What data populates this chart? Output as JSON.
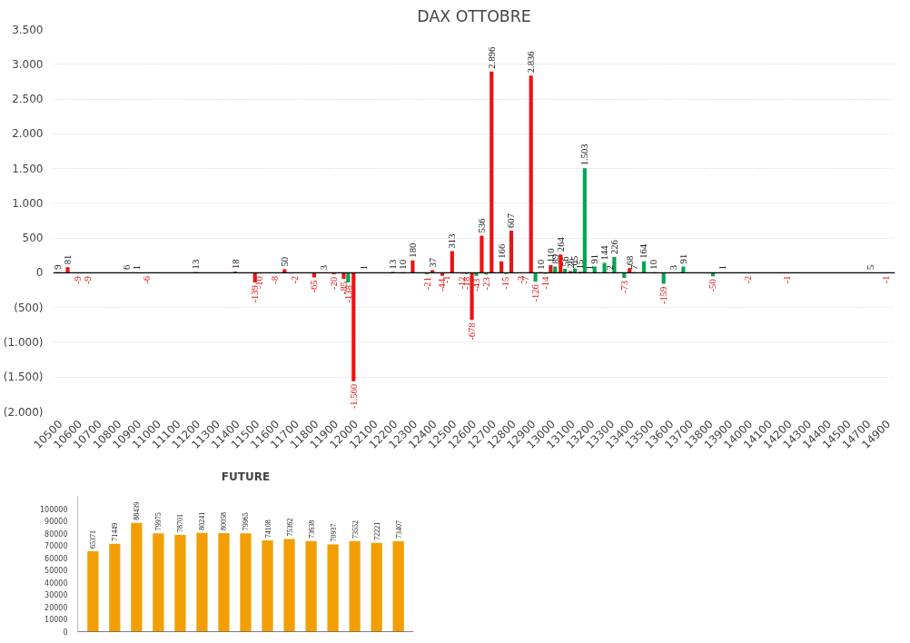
{
  "chart_data": [
    {
      "type": "bar",
      "title": "DAX OTTOBRE",
      "categories": [
        "10500",
        null,
        "10600",
        null,
        "10700",
        null,
        "10800",
        null,
        "10900",
        null,
        "11000",
        null,
        "11100",
        null,
        "11200",
        null,
        "11300",
        null,
        "11400",
        null,
        "11500",
        null,
        "11600",
        null,
        "11700",
        null,
        "11800",
        null,
        "11900",
        null,
        "12000",
        null,
        "12100",
        null,
        "12200",
        null,
        "12300",
        null,
        "12400",
        null,
        "12500",
        null,
        "12600",
        null,
        "12700",
        null,
        "12800",
        null,
        "12900",
        null,
        "13000",
        null,
        "13100",
        null,
        "13200",
        null,
        "13300",
        null,
        "13400",
        null,
        "13500",
        null,
        "13600",
        null,
        "13700",
        null,
        "13800",
        null,
        "13900",
        null,
        "14000",
        null,
        "14100",
        null,
        "14200",
        null,
        "14300",
        null,
        "14400",
        null,
        "14500",
        null,
        "14700",
        null,
        "14900"
      ],
      "series": [
        {
          "color": "#ee1111",
          "values": [
            9,
            81,
            -9,
            -9,
            null,
            null,
            null,
            6,
            1,
            -6,
            null,
            null,
            null,
            null,
            13,
            null,
            null,
            null,
            18,
            null,
            -139,
            null,
            -8,
            50,
            -2,
            null,
            -65,
            3,
            -20,
            -85,
            -1560,
            1,
            null,
            null,
            13,
            10,
            180,
            null,
            37,
            -44,
            313,
            -12,
            -678,
            536,
            2896,
            166,
            607,
            -3,
            2836,
            10,
            110,
            264,
            26,
            15,
            1,
            null,
            2,
            null,
            68,
            null,
            null,
            null,
            null,
            null,
            null,
            null,
            null,
            null,
            null,
            null,
            -2,
            null,
            null,
            null,
            -1,
            null,
            null,
            null,
            null,
            null,
            null,
            null,
            null,
            null,
            -1
          ],
          "value_labels": [
            "9",
            "81",
            "-9",
            "-9",
            null,
            null,
            null,
            "6",
            "1",
            "-6",
            null,
            null,
            null,
            null,
            "13",
            null,
            null,
            null,
            "18",
            null,
            "-139",
            null,
            "-8",
            "50",
            "-2",
            null,
            "-65",
            "3",
            "-20",
            "-85",
            "-1.560",
            "1",
            null,
            null,
            "13",
            "10",
            "180",
            null,
            "37",
            "-44",
            "313",
            "-12",
            "-678",
            "536",
            "2.896",
            "166",
            "607",
            "-3",
            "2.836",
            "10",
            "110",
            "264",
            "26",
            "15",
            "1",
            null,
            "2",
            null,
            "68",
            null,
            null,
            null,
            null,
            null,
            null,
            null,
            null,
            null,
            null,
            null,
            "-2",
            null,
            null,
            null,
            "-1",
            null,
            null,
            null,
            null,
            null,
            null,
            null,
            null,
            null,
            "-1"
          ]
        },
        {
          "color": "#00a651",
          "values": [
            null,
            null,
            null,
            null,
            null,
            null,
            null,
            null,
            null,
            null,
            null,
            null,
            null,
            null,
            null,
            null,
            null,
            null,
            null,
            null,
            -10,
            null,
            null,
            null,
            null,
            null,
            null,
            null,
            null,
            -138,
            null,
            null,
            null,
            null,
            null,
            null,
            null,
            -21,
            null,
            -1,
            null,
            -18,
            -43,
            -23,
            null,
            -15,
            null,
            -7,
            -126,
            -14,
            89,
            56,
            65,
            1503,
            91,
            144,
            226,
            -73,
            7,
            164,
            10,
            -159,
            3,
            91,
            null,
            null,
            -50,
            1,
            null,
            null,
            null,
            null,
            null,
            null,
            null,
            null,
            null,
            null,
            null,
            null,
            null,
            null,
            5,
            null,
            null
          ],
          "value_labels": [
            null,
            null,
            null,
            null,
            null,
            null,
            null,
            null,
            null,
            null,
            null,
            null,
            null,
            null,
            null,
            null,
            null,
            null,
            null,
            null,
            "-10",
            null,
            null,
            null,
            null,
            null,
            null,
            null,
            null,
            "-138",
            null,
            null,
            null,
            null,
            null,
            null,
            null,
            "-21",
            null,
            "-1",
            null,
            "-18",
            "-43",
            "-23",
            null,
            "-15",
            null,
            "-7",
            "-126",
            "-14",
            "89",
            "56",
            "65",
            "1.503",
            "91",
            "144",
            "226",
            "-73",
            "7",
            "164",
            "10",
            "-159",
            "3",
            "91",
            null,
            null,
            "-50",
            "1",
            null,
            null,
            null,
            null,
            null,
            null,
            null,
            null,
            null,
            null,
            null,
            null,
            null,
            null,
            "5",
            null,
            null
          ]
        }
      ],
      "ylim": [
        -2000,
        3500
      ],
      "yticks": [
        {
          "value": -2000,
          "label": "(2.000)"
        },
        {
          "value": -1500,
          "label": "(1.500)"
        },
        {
          "value": -1000,
          "label": "(1.000)"
        },
        {
          "value": -500,
          "label": "(500)"
        },
        0,
        500,
        {
          "value": 1000,
          "label": "1.000"
        },
        {
          "value": 1500,
          "label": "1.500"
        },
        {
          "value": 2000,
          "label": "2.000"
        },
        {
          "value": 2500,
          "label": "2.500"
        },
        {
          "value": 3000,
          "label": "3.000"
        },
        {
          "value": 3500,
          "label": "3.500"
        }
      ],
      "grid": "y"
    },
    {
      "type": "bar",
      "title": "FUTURE",
      "categories": [
        null,
        null,
        null,
        null,
        null,
        null,
        null,
        null,
        null,
        null,
        null,
        null,
        null,
        null,
        null
      ],
      "values": [
        65371,
        71449,
        88439,
        79975,
        78701,
        80241,
        80058,
        79965,
        74108,
        75362,
        73638,
        70937,
        73552,
        72221,
        73407
      ],
      "color": "#f29f05",
      "ylim": [
        0,
        110000
      ],
      "yticks": [
        0,
        10000,
        20000,
        30000,
        40000,
        50000,
        60000,
        70000,
        80000,
        90000,
        100000
      ],
      "data_labels": true
    }
  ]
}
